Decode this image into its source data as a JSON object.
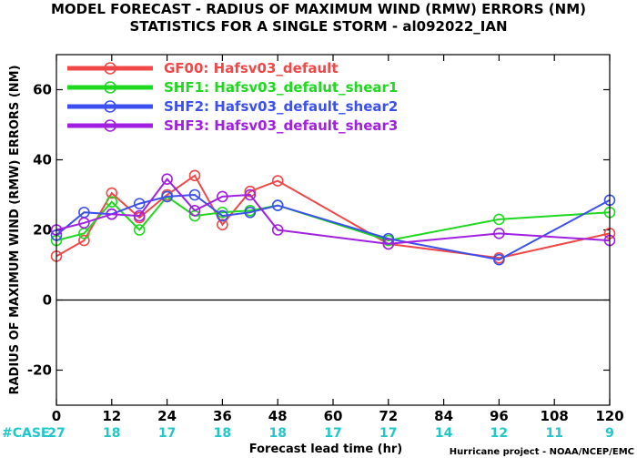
{
  "chart_data": {
    "type": "line",
    "title": "MODEL FORECAST - RADIUS OF MAXIMUM WIND (RMW) ERRORS (NM)",
    "subtitle": "STATISTICS FOR A SINGLE STORM - al092022_IAN",
    "xlabel": "Forecast lead time (hr)",
    "ylabel": "RADIUS OF MAXIMUM WIND (RMW) ERRORS (NM)",
    "xlim": [
      0,
      120
    ],
    "ylim": [
      -30,
      70
    ],
    "xticks": [
      0,
      12,
      24,
      36,
      48,
      60,
      72,
      84,
      96,
      108,
      120
    ],
    "yticks": [
      -20,
      0,
      20,
      40,
      60
    ],
    "ytick_labels": [
      "-20",
      "0",
      "20",
      "40",
      "60"
    ],
    "grid": false,
    "legend_position": "top-left",
    "case_label": "#CASE",
    "case_counts": [
      "27",
      "18",
      "17",
      "18",
      "18",
      "17",
      "17",
      "14",
      "12",
      "11",
      "9"
    ],
    "series": [
      {
        "name": "GF00: Hafsv03_default",
        "color": "#f04848",
        "x": [
          0,
          6,
          12,
          18,
          24,
          30,
          36,
          42,
          48,
          72,
          96,
          120
        ],
        "y": [
          12.5,
          17,
          30.5,
          23.5,
          30,
          35.5,
          21.5,
          31,
          34,
          16,
          12,
          19
        ]
      },
      {
        "name": "SHF1: Hafsv03_defalut_shear1",
        "color": "#20d820",
        "x": [
          0,
          6,
          12,
          18,
          24,
          30,
          36,
          42,
          48,
          72,
          96,
          120
        ],
        "y": [
          17,
          19,
          28,
          20,
          29.5,
          24,
          25,
          25.5,
          27,
          17,
          23,
          25
        ]
      },
      {
        "name": "SHF2: Hafsv03_default_shear2",
        "color": "#3c50f0",
        "x": [
          0,
          6,
          12,
          18,
          24,
          30,
          36,
          42,
          48,
          72,
          96,
          120
        ],
        "y": [
          18.5,
          25,
          24.5,
          27.5,
          29.5,
          30,
          24,
          25,
          27,
          17.5,
          11.5,
          28.5
        ]
      },
      {
        "name": "SHF3: Hafsv03_default_shear3",
        "color": "#a020e0",
        "x": [
          0,
          6,
          12,
          18,
          24,
          30,
          36,
          42,
          48,
          72,
          96,
          120
        ],
        "y": [
          20,
          22,
          24.5,
          24,
          34.5,
          25.5,
          29.5,
          30,
          20,
          16,
          19,
          17
        ]
      }
    ]
  },
  "credit": "Hurricane project - NOAA/NCEP/EMC"
}
